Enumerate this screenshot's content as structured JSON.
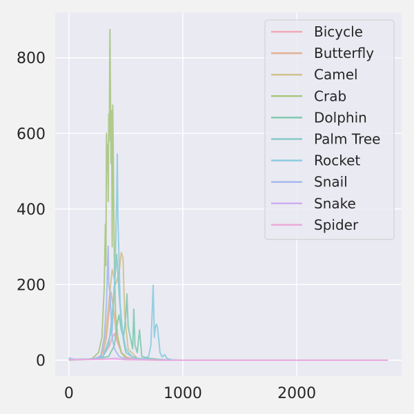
{
  "chart_data": {
    "type": "line",
    "title": "",
    "xlabel": "",
    "ylabel": "",
    "xlim": [
      -120,
      2920
    ],
    "ylim": [
      -42,
      920
    ],
    "xticks": [
      0,
      1000,
      2000
    ],
    "yticks": [
      0,
      200,
      400,
      600,
      800
    ],
    "x_tick_labels": [
      "0",
      "1000",
      "2000"
    ],
    "y_tick_labels": [
      "0",
      "200",
      "400",
      "600",
      "800"
    ],
    "grid": true,
    "legend_position": "top-right",
    "series": [
      {
        "name": "Bicycle",
        "color": "#f1a7b8",
        "points": [
          [
            0,
            3
          ],
          [
            50,
            1
          ],
          [
            150,
            2
          ],
          [
            250,
            5
          ],
          [
            300,
            12
          ],
          [
            330,
            25
          ],
          [
            360,
            40
          ],
          [
            380,
            60
          ],
          [
            400,
            70
          ],
          [
            430,
            45
          ],
          [
            460,
            20
          ],
          [
            500,
            8
          ],
          [
            600,
            2
          ],
          [
            900,
            0
          ],
          [
            2800,
            0
          ]
        ]
      },
      {
        "name": "Butterfly",
        "color": "#e4b192",
        "points": [
          [
            0,
            2
          ],
          [
            100,
            1
          ],
          [
            250,
            4
          ],
          [
            300,
            20
          ],
          [
            330,
            60
          ],
          [
            350,
            120
          ],
          [
            370,
            180
          ],
          [
            390,
            140
          ],
          [
            420,
            60
          ],
          [
            460,
            20
          ],
          [
            520,
            5
          ],
          [
            700,
            1
          ],
          [
            900,
            0
          ],
          [
            2800,
            0
          ]
        ]
      },
      {
        "name": "Camel",
        "color": "#d1c08e",
        "points": [
          [
            0,
            1
          ],
          [
            200,
            2
          ],
          [
            280,
            10
          ],
          [
            320,
            60
          ],
          [
            350,
            150
          ],
          [
            380,
            240
          ],
          [
            410,
            200
          ],
          [
            440,
            230
          ],
          [
            460,
            285
          ],
          [
            475,
            270
          ],
          [
            490,
            120
          ],
          [
            520,
            30
          ],
          [
            600,
            5
          ],
          [
            900,
            0
          ],
          [
            2800,
            0
          ]
        ]
      },
      {
        "name": "Crab",
        "color": "#a9c77f",
        "points": [
          [
            0,
            0
          ],
          [
            200,
            3
          ],
          [
            260,
            20
          ],
          [
            290,
            60
          ],
          [
            310,
            190
          ],
          [
            320,
            360
          ],
          [
            325,
            250
          ],
          [
            330,
            600
          ],
          [
            335,
            500
          ],
          [
            340,
            570
          ],
          [
            345,
            420
          ],
          [
            350,
            650
          ],
          [
            355,
            580
          ],
          [
            360,
            875
          ],
          [
            365,
            700
          ],
          [
            370,
            520
          ],
          [
            375,
            660
          ],
          [
            380,
            300
          ],
          [
            385,
            675
          ],
          [
            390,
            540
          ],
          [
            395,
            380
          ],
          [
            400,
            240
          ],
          [
            410,
            120
          ],
          [
            430,
            60
          ],
          [
            460,
            20
          ],
          [
            500,
            5
          ],
          [
            600,
            1
          ],
          [
            900,
            0
          ],
          [
            2800,
            0
          ]
        ]
      },
      {
        "name": "Dolphin",
        "color": "#7fcab0",
        "points": [
          [
            0,
            1
          ],
          [
            250,
            3
          ],
          [
            350,
            10
          ],
          [
            400,
            40
          ],
          [
            420,
            90
          ],
          [
            440,
            120
          ],
          [
            460,
            80
          ],
          [
            480,
            60
          ],
          [
            500,
            120
          ],
          [
            510,
            175
          ],
          [
            520,
            90
          ],
          [
            540,
            60
          ],
          [
            560,
            30
          ],
          [
            570,
            135
          ],
          [
            580,
            40
          ],
          [
            600,
            20
          ],
          [
            620,
            80
          ],
          [
            640,
            10
          ],
          [
            700,
            5
          ],
          [
            800,
            2
          ],
          [
            900,
            0
          ],
          [
            2800,
            0
          ]
        ]
      },
      {
        "name": "Palm Tree",
        "color": "#87c9c8",
        "points": [
          [
            0,
            2
          ],
          [
            200,
            3
          ],
          [
            300,
            10
          ],
          [
            350,
            40
          ],
          [
            380,
            120
          ],
          [
            400,
            200
          ],
          [
            420,
            280
          ],
          [
            440,
            180
          ],
          [
            460,
            100
          ],
          [
            480,
            50
          ],
          [
            500,
            20
          ],
          [
            550,
            10
          ],
          [
            600,
            5
          ],
          [
            700,
            2
          ],
          [
            900,
            0
          ],
          [
            2800,
            0
          ]
        ]
      },
      {
        "name": "Rocket",
        "color": "#8ccbe0",
        "points": [
          [
            0,
            6
          ],
          [
            50,
            2
          ],
          [
            200,
            2
          ],
          [
            300,
            10
          ],
          [
            380,
            80
          ],
          [
            400,
            200
          ],
          [
            410,
            300
          ],
          [
            420,
            440
          ],
          [
            425,
            545
          ],
          [
            430,
            380
          ],
          [
            440,
            270
          ],
          [
            450,
            150
          ],
          [
            470,
            80
          ],
          [
            500,
            30
          ],
          [
            550,
            10
          ],
          [
            600,
            5
          ],
          [
            650,
            3
          ],
          [
            700,
            10
          ],
          [
            720,
            40
          ],
          [
            740,
            198
          ],
          [
            750,
            60
          ],
          [
            760,
            90
          ],
          [
            770,
            95
          ],
          [
            780,
            80
          ],
          [
            790,
            50
          ],
          [
            800,
            20
          ],
          [
            820,
            8
          ],
          [
            840,
            15
          ],
          [
            860,
            5
          ],
          [
            900,
            1
          ],
          [
            1000,
            0
          ],
          [
            2800,
            0
          ]
        ]
      },
      {
        "name": "Snail",
        "color": "#a5b8ef",
        "points": [
          [
            0,
            1
          ],
          [
            200,
            2
          ],
          [
            280,
            10
          ],
          [
            310,
            60
          ],
          [
            330,
            150
          ],
          [
            345,
            302
          ],
          [
            350,
            200
          ],
          [
            360,
            180
          ],
          [
            370,
            120
          ],
          [
            380,
            60
          ],
          [
            400,
            30
          ],
          [
            440,
            10
          ],
          [
            500,
            3
          ],
          [
            700,
            1
          ],
          [
            900,
            0
          ],
          [
            2800,
            0
          ]
        ]
      },
      {
        "name": "Snake",
        "color": "#cfaeef",
        "points": [
          [
            0,
            1
          ],
          [
            300,
            3
          ],
          [
            400,
            5
          ],
          [
            500,
            2
          ],
          [
            900,
            0
          ],
          [
            2800,
            0
          ]
        ]
      },
      {
        "name": "Spider",
        "color": "#ecaadb",
        "points": [
          [
            0,
            1
          ],
          [
            300,
            2
          ],
          [
            400,
            3
          ],
          [
            500,
            1
          ],
          [
            900,
            0
          ],
          [
            2800,
            0
          ]
        ]
      }
    ]
  }
}
